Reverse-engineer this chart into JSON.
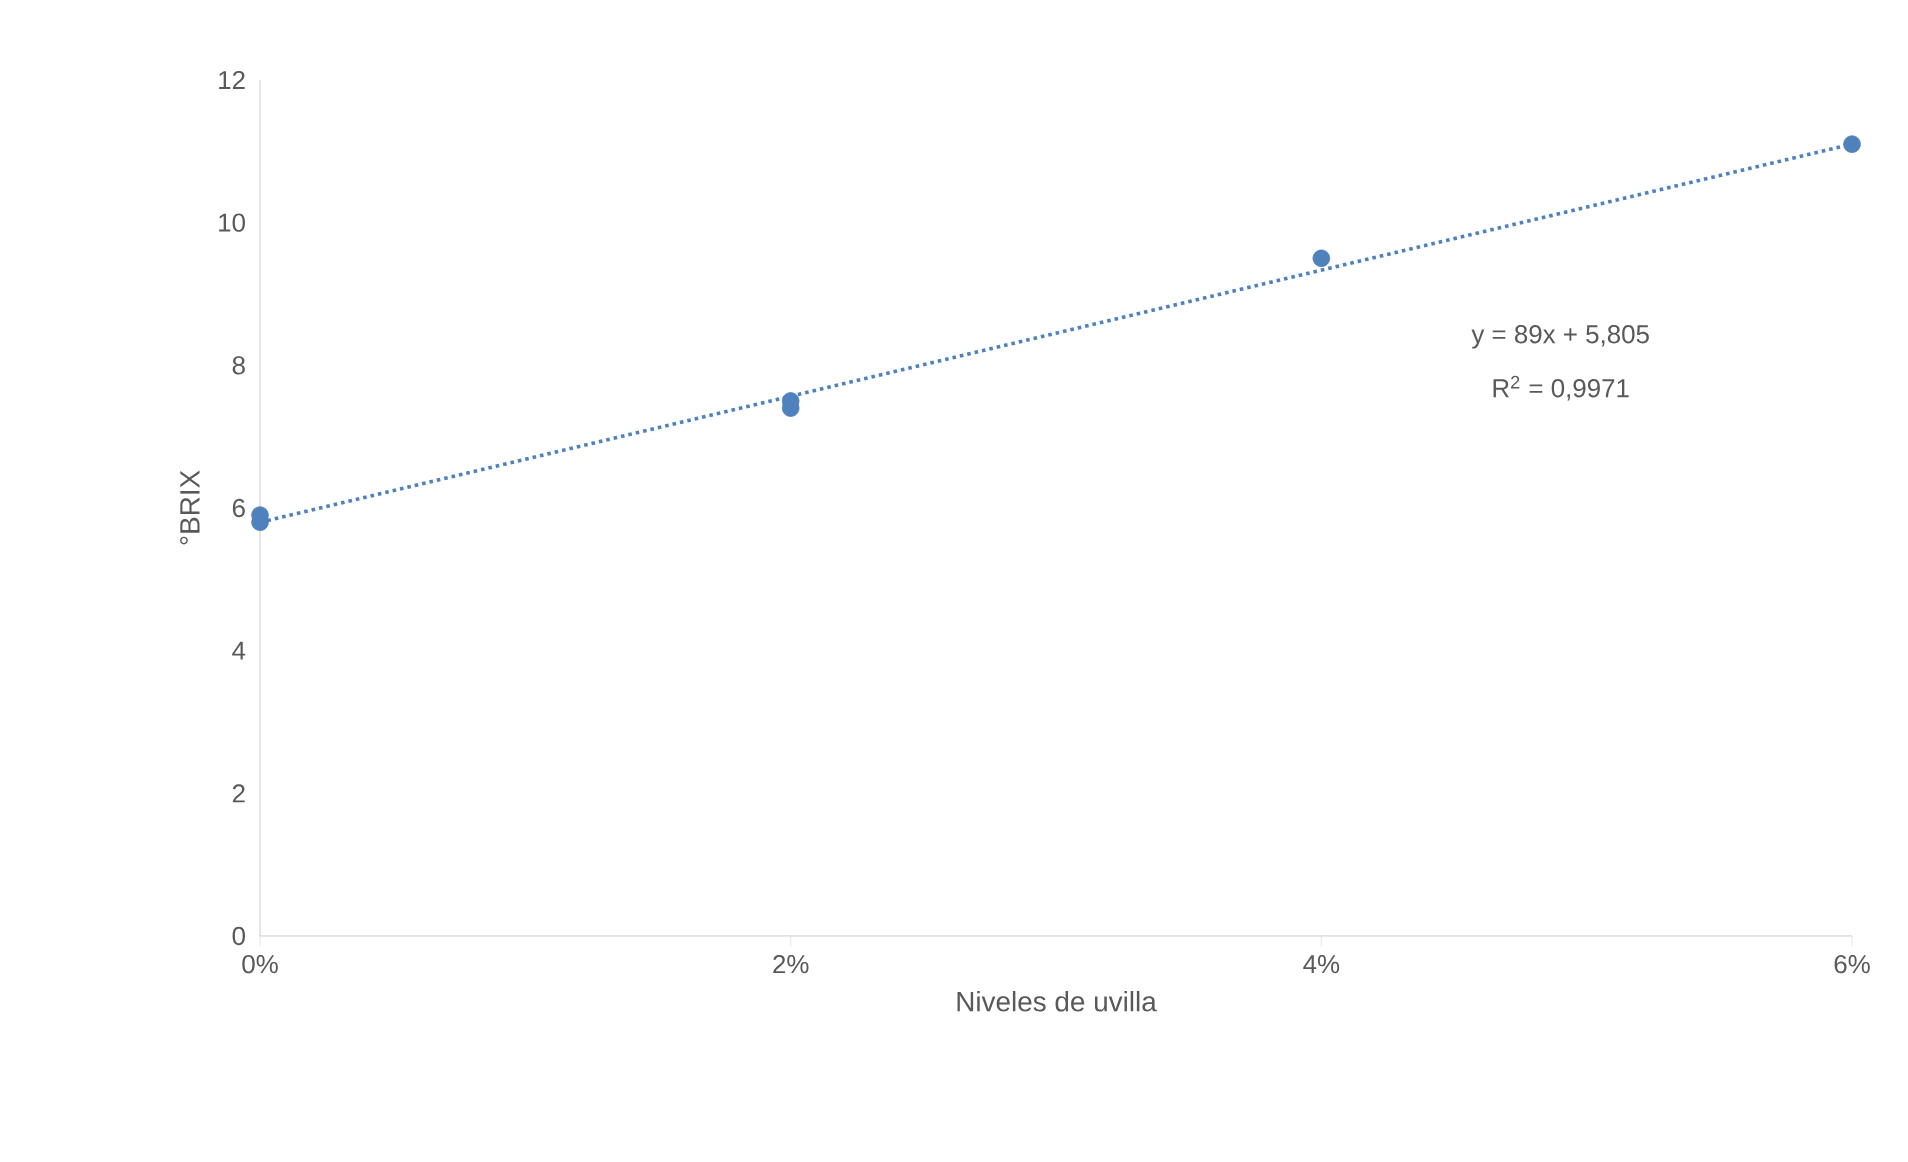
{
  "chart_data": {
    "type": "scatter",
    "xlabel": "Niveles de uvilla",
    "ylabel": "°BRIX",
    "xlim": [
      0,
      0.06
    ],
    "xticks": [
      {
        "value": 0,
        "label": "0%"
      },
      {
        "value": 0.02,
        "label": "2%"
      },
      {
        "value": 0.04,
        "label": "4%"
      },
      {
        "value": 0.06,
        "label": "6%"
      }
    ],
    "ylim": [
      0,
      12
    ],
    "yticks": [
      0,
      2,
      4,
      6,
      8,
      10,
      12
    ],
    "grid": false,
    "series": [
      {
        "color": "#4f81bd",
        "x": [
          0,
          0,
          0.02,
          0.02,
          0.04,
          0.06
        ],
        "values": [
          5.8,
          5.9,
          7.4,
          7.5,
          9.5,
          11.1
        ]
      },
      {
        "type": "line",
        "color": "#4f81bd",
        "line_style": "dotted",
        "x": [
          0,
          0.06
        ],
        "values": [
          5.8,
          11.1
        ]
      }
    ],
    "annotations": [
      "y = 89x + 5,805",
      "R$^{2}$ = 0,9971"
    ]
  }
}
